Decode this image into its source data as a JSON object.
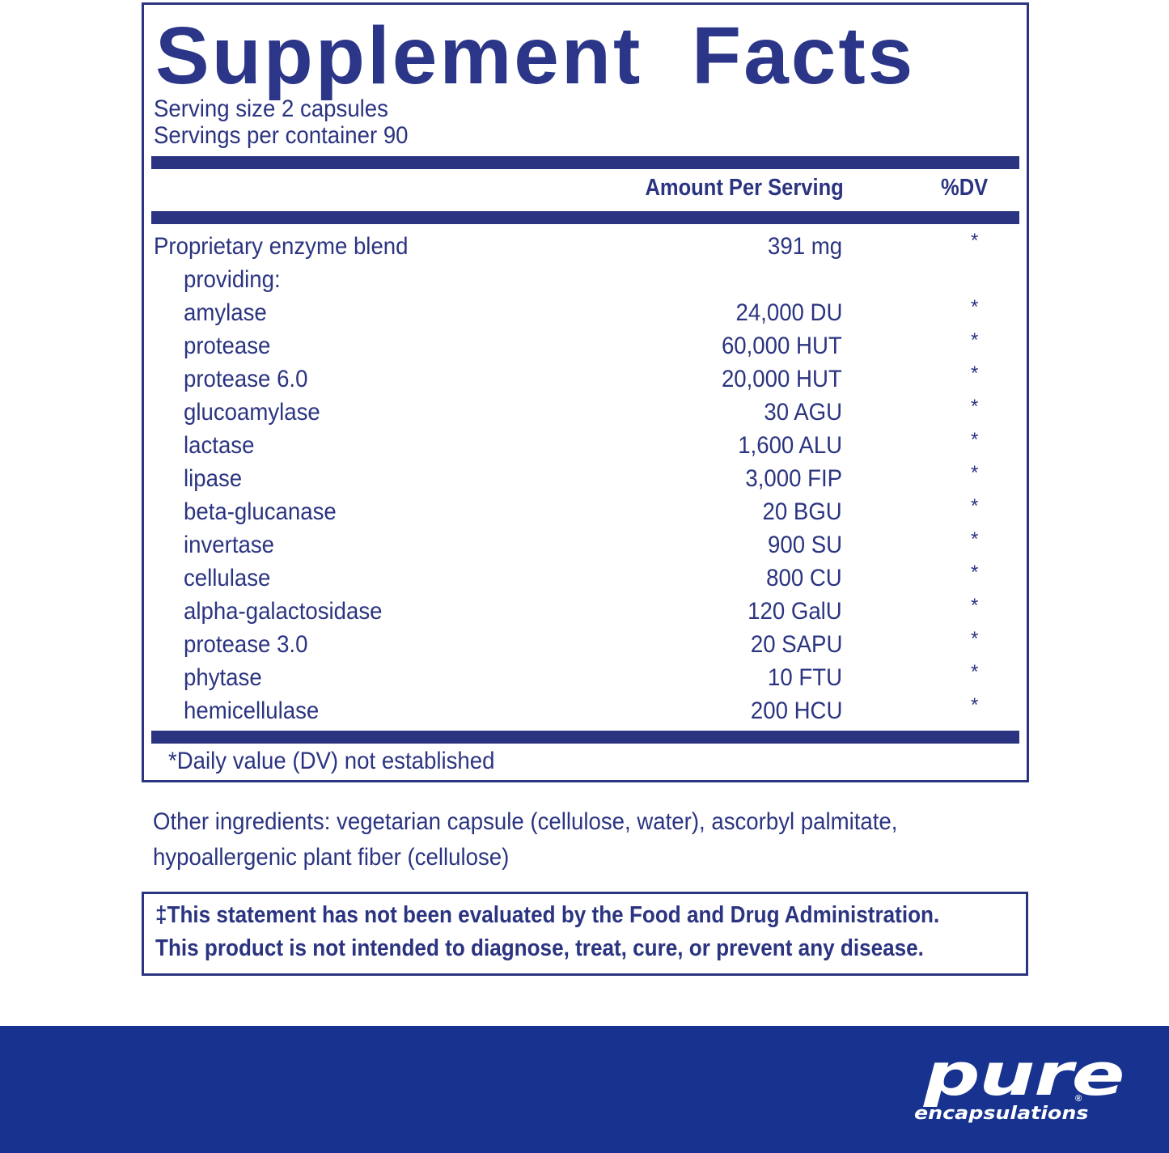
{
  "facts": {
    "title": "Supplement Facts",
    "serving_size": "Serving size  2 capsules",
    "servings_per_container": "Servings per container  90",
    "header_amount": "Amount Per Serving",
    "header_dv": "%DV",
    "rows": [
      {
        "name": "Proprietary enzyme blend",
        "amount": "391 mg",
        "dv": "*",
        "sub": false
      },
      {
        "name": "providing:",
        "amount": "",
        "dv": "",
        "sub": true
      },
      {
        "name": "amylase",
        "amount": "24,000 DU",
        "dv": "*",
        "sub": true
      },
      {
        "name": "protease",
        "amount": "60,000 HUT",
        "dv": "*",
        "sub": true
      },
      {
        "name": "protease 6.0",
        "amount": "20,000 HUT",
        "dv": "*",
        "sub": true
      },
      {
        "name": "glucoamylase",
        "amount": "30 AGU",
        "dv": "*",
        "sub": true
      },
      {
        "name": "lactase",
        "amount": "1,600 ALU",
        "dv": "*",
        "sub": true
      },
      {
        "name": "lipase",
        "amount": "3,000 FIP",
        "dv": "*",
        "sub": true
      },
      {
        "name": "beta-glucanase",
        "amount": "20 BGU",
        "dv": "*",
        "sub": true
      },
      {
        "name": "invertase",
        "amount": "900 SU",
        "dv": "*",
        "sub": true
      },
      {
        "name": "cellulase",
        "amount": "800 CU",
        "dv": "*",
        "sub": true
      },
      {
        "name": "alpha-galactosidase",
        "amount": "120 GalU",
        "dv": "*",
        "sub": true
      },
      {
        "name": "protease 3.0",
        "amount": "20 SAPU",
        "dv": "*",
        "sub": true
      },
      {
        "name": "phytase",
        "amount": "10 FTU",
        "dv": "*",
        "sub": true
      },
      {
        "name": "hemicellulase",
        "amount": "200 HCU",
        "dv": "*",
        "sub": true
      }
    ],
    "footnote": "*Daily value (DV) not established"
  },
  "other_ingredients": "Other ingredients: vegetarian capsule (cellulose, water), ascorbyl palmitate, hypoallergenic plant fiber (cellulose)",
  "disclaimer": {
    "line1": "‡This statement has not been evaluated by the Food and Drug Administration.",
    "line2": "This product is not intended to diagnose, treat, cure, or prevent any disease."
  },
  "brand": {
    "logo_top": "pure",
    "logo_bottom": "encapsulations",
    "registered": "®"
  },
  "colors": {
    "text": "#2b3480",
    "band": "#17338f"
  }
}
